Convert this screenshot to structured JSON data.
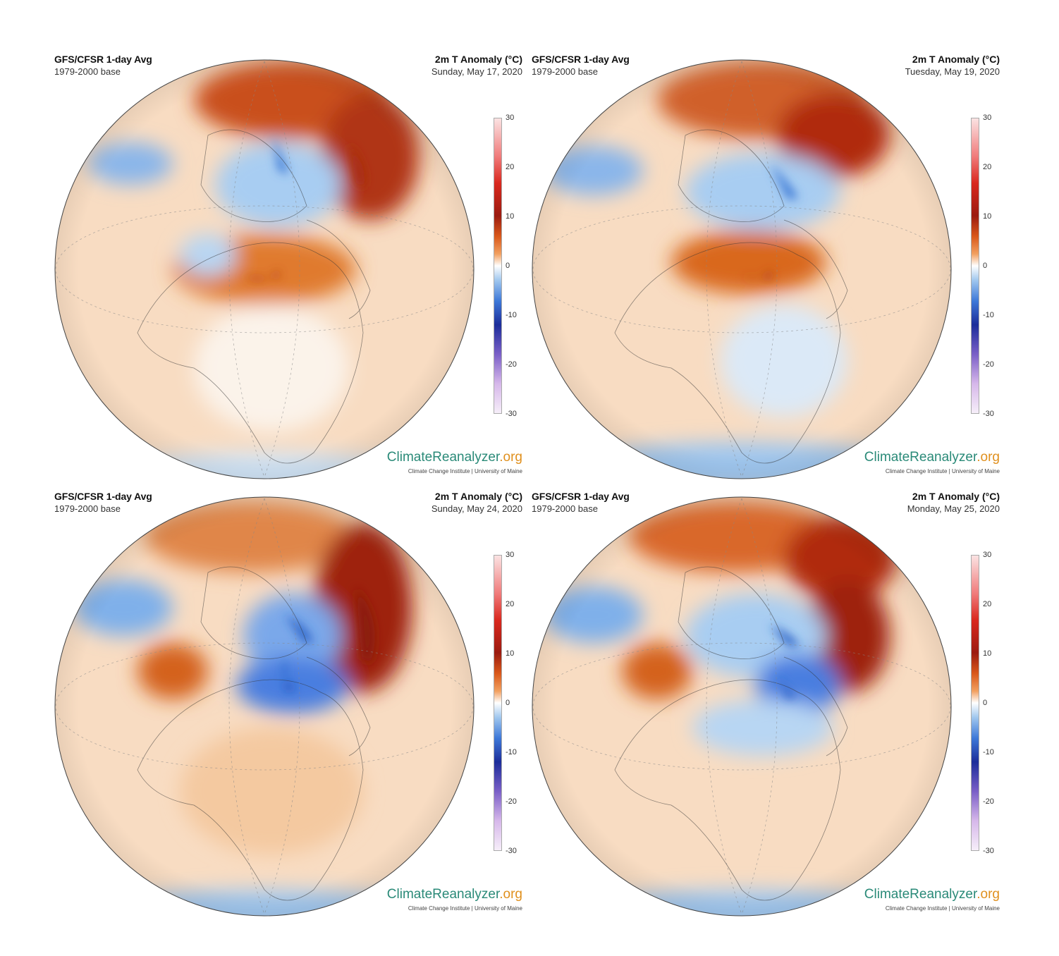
{
  "panels": [
    {
      "title": "GFS/CFSR 1-day Avg",
      "subtitle": "1979-2000 base",
      "variable": "2m T Anomaly (°C)",
      "date": "Sunday, May 17, 2020",
      "brand_main": "ClimateReanalyzer",
      "brand_tld": ".org",
      "credit": "Climate Change Institute | University of Maine"
    },
    {
      "title": "GFS/CFSR 1-day Avg",
      "subtitle": "1979-2000 base",
      "variable": "2m T Anomaly (°C)",
      "date": "Tuesday, May 19, 2020",
      "brand_main": "ClimateReanalyzer",
      "brand_tld": ".org",
      "credit": "Climate Change Institute | University of Maine"
    },
    {
      "title": "GFS/CFSR 1-day Avg",
      "subtitle": "1979-2000 base",
      "variable": "2m T Anomaly (°C)",
      "date": "Sunday, May 24, 2020",
      "brand_main": "ClimateReanalyzer",
      "brand_tld": ".org",
      "credit": "Climate Change Institute | University of Maine"
    },
    {
      "title": "GFS/CFSR 1-day Avg",
      "subtitle": "1979-2000 base",
      "variable": "2m T Anomaly (°C)",
      "date": "Monday, May 25, 2020",
      "brand_main": "ClimateReanalyzer",
      "brand_tld": ".org",
      "credit": "Climate Change Institute | University of Maine"
    }
  ],
  "colorbar": {
    "ticks": [
      "30",
      "20",
      "10",
      "0",
      "-10",
      "-20",
      "-30"
    ],
    "range": [
      -30,
      30
    ],
    "colors": {
      "warm_extreme": "#d9281e",
      "warm": "#e8762a",
      "neutral": "#ffffff",
      "cool": "#5a93e0",
      "cold_extreme": "#1c2d9a"
    }
  }
}
